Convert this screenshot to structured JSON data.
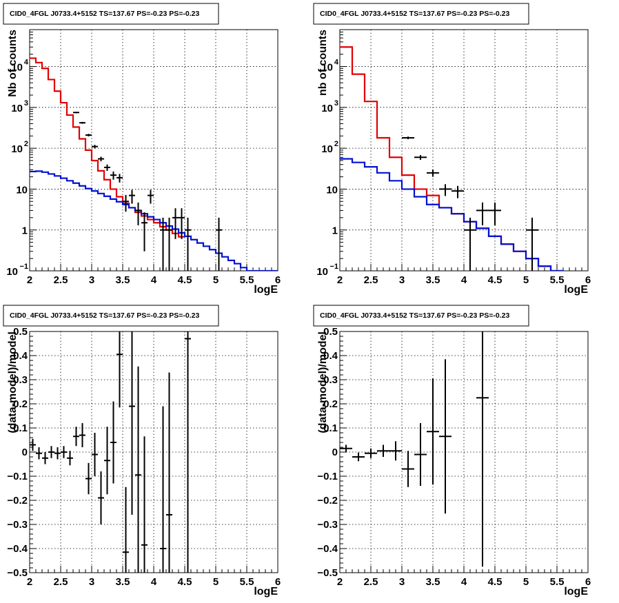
{
  "colors": {
    "data": "#000000",
    "model_total": "#e00000",
    "model_background": "#0010d0",
    "grid": "#000000"
  },
  "chart_data": [
    {
      "type": "line",
      "title": "CID0_4FGL J0733.4+5152 TS=137.67 PS=-0.23 PS=-0.23",
      "xlabel": "logE",
      "ylabel": "Nb of counts",
      "xlim": [
        2,
        6
      ],
      "ylim": [
        0.1,
        80000
      ],
      "y_scale": "log",
      "grid": true,
      "x_ticks": [
        "2",
        "2.5",
        "3",
        "3.5",
        "4",
        "4.5",
        "5",
        "5.5",
        "6"
      ],
      "y_ticks": [
        {
          "value": 0.1,
          "base": "10",
          "exp": "−1"
        },
        {
          "value": 1,
          "base": "1",
          "exp": ""
        },
        {
          "value": 10,
          "base": "10",
          "exp": ""
        },
        {
          "value": 100,
          "base": "10",
          "exp": "2"
        },
        {
          "value": 1000,
          "base": "10",
          "exp": "3"
        },
        {
          "value": 10000,
          "base": "10",
          "exp": "4"
        }
      ],
      "step_width": 0.1,
      "series": [
        {
          "role": "model_total",
          "x_start": 2.0,
          "values": [
            16000,
            12500,
            9000,
            4800,
            2500,
            1300,
            650,
            330,
            170,
            90,
            50,
            28,
            17,
            10,
            6.5,
            4.5,
            3.5,
            2.7,
            2.2,
            1.8,
            1.5,
            1.2,
            1.0,
            0.82,
            0.68
          ]
        },
        {
          "role": "model_background",
          "x_start": 2.0,
          "values": [
            27,
            27.5,
            26,
            23.5,
            21,
            18.5,
            16,
            14,
            12,
            10.3,
            9,
            7.8,
            6.7,
            5.7,
            4.9,
            4.2,
            3.5,
            3.0,
            2.5,
            2.1,
            1.8,
            1.5,
            1.25,
            1.05,
            0.85,
            0.7,
            0.58,
            0.48,
            0.4,
            0.33,
            0.27,
            0.22,
            0.18,
            0.15,
            0.12,
            0.1,
            0.1,
            0.1,
            0.1,
            0.1
          ]
        },
        {
          "role": "data",
          "x_half_width": 0.05,
          "points": [
            {
              "x": 2.75,
              "y": 750,
              "err": 30
            },
            {
              "x": 2.85,
              "y": 420,
              "err": 22
            },
            {
              "x": 2.95,
              "y": 210,
              "err": 15
            },
            {
              "x": 3.05,
              "y": 110,
              "err": 11
            },
            {
              "x": 3.15,
              "y": 55,
              "err": 7
            },
            {
              "x": 3.25,
              "y": 34,
              "err": 6
            },
            {
              "x": 3.35,
              "y": 22,
              "err": 5
            },
            {
              "x": 3.45,
              "y": 19,
              "err": 4.5
            },
            {
              "x": 3.55,
              "y": 5,
              "err": 2.2
            },
            {
              "x": 3.65,
              "y": 7,
              "err": 2.6
            },
            {
              "x": 3.75,
              "y": 3,
              "err": 1.7
            },
            {
              "x": 3.85,
              "y": 1.5,
              "err": 1.2
            },
            {
              "x": 3.95,
              "y": 7,
              "err": 2.6
            },
            {
              "x": 4.15,
              "y": 1,
              "err": 1
            },
            {
              "x": 4.25,
              "y": 1,
              "err": 1
            },
            {
              "x": 4.35,
              "y": 2,
              "err": 1.4
            },
            {
              "x": 4.45,
              "y": 2,
              "err": 1.4
            },
            {
              "x": 4.55,
              "y": 1,
              "err": 1
            },
            {
              "x": 5.05,
              "y": 1,
              "err": 1
            }
          ]
        }
      ]
    },
    {
      "type": "line",
      "title": "CID0_4FGL J0733.4+5152 TS=137.67 PS=-0.23 PS=-0.23",
      "xlabel": "logE",
      "ylabel": "nb of counts",
      "xlim": [
        2,
        6
      ],
      "ylim": [
        0.1,
        80000
      ],
      "y_scale": "log",
      "grid": true,
      "x_ticks": [
        "2",
        "2.5",
        "3",
        "3.5",
        "4",
        "4.5",
        "5",
        "5.5",
        "6"
      ],
      "y_ticks": [
        {
          "value": 0.1,
          "base": "10",
          "exp": "−1"
        },
        {
          "value": 1,
          "base": "1",
          "exp": ""
        },
        {
          "value": 10,
          "base": "10",
          "exp": ""
        },
        {
          "value": 100,
          "base": "10",
          "exp": "2"
        },
        {
          "value": 1000,
          "base": "10",
          "exp": "3"
        },
        {
          "value": 10000,
          "base": "10",
          "exp": "4"
        }
      ],
      "step_width": 0.2,
      "series": [
        {
          "role": "model_total",
          "x_start": 2.0,
          "values": [
            30000,
            6500,
            1400,
            180,
            60,
            22,
            10,
            7,
            3.5,
            2.5,
            1.6,
            1.1,
            0.7,
            0.45,
            0.3,
            0.2,
            0.13,
            0.1
          ]
        },
        {
          "role": "model_background",
          "x_start": 2.0,
          "values": [
            55,
            45,
            35,
            25,
            16,
            10,
            6.5,
            4.2,
            3.5,
            2.5,
            1.6,
            1.1,
            0.7,
            0.45,
            0.3,
            0.2,
            0.13,
            0.1
          ]
        },
        {
          "role": "data",
          "x_half_width": 0.1,
          "points": [
            {
              "x": 3.1,
              "y": 180,
              "err": 13
            },
            {
              "x": 3.3,
              "y": 60,
              "err": 8
            },
            {
              "x": 3.5,
              "y": 25,
              "err": 5
            },
            {
              "x": 3.7,
              "y": 10,
              "err": 3.2
            },
            {
              "x": 3.9,
              "y": 9,
              "err": 3
            },
            {
              "x": 4.1,
              "y": 1,
              "err": 1
            },
            {
              "x": 4.3,
              "y": 3,
              "err": 1.7
            },
            {
              "x": 4.5,
              "y": 3,
              "err": 1.7
            },
            {
              "x": 5.1,
              "y": 1,
              "err": 1
            }
          ]
        }
      ]
    },
    {
      "type": "scatter",
      "title": "CID0_4FGL J0733.4+5152 TS=137.67 PS=-0.23 PS=-0.23",
      "xlabel": "logE",
      "ylabel": "(data-model)/model",
      "xlim": [
        2,
        6
      ],
      "ylim": [
        -0.5,
        0.5
      ],
      "y_scale": "linear",
      "grid": true,
      "x_ticks": [
        "2",
        "2.5",
        "3",
        "3.5",
        "4",
        "4.5",
        "5",
        "5.5",
        "6"
      ],
      "y_ticks": [
        "−0.5",
        "−0.4",
        "−0.3",
        "−0.2",
        "−0.1",
        "0",
        "0.1",
        "0.2",
        "0.3",
        "0.4",
        "0.5"
      ],
      "series": [
        {
          "role": "data",
          "x_half_width": 0.05,
          "points": [
            {
              "x": 2.05,
              "y": 0.03,
              "err": 0.025
            },
            {
              "x": 2.15,
              "y": -0.005,
              "err": 0.025
            },
            {
              "x": 2.25,
              "y": -0.025,
              "err": 0.025
            },
            {
              "x": 2.35,
              "y": 0.0,
              "err": 0.025
            },
            {
              "x": 2.45,
              "y": -0.005,
              "err": 0.025
            },
            {
              "x": 2.55,
              "y": 0.0,
              "err": 0.025
            },
            {
              "x": 2.65,
              "y": -0.025,
              "err": 0.03
            },
            {
              "x": 2.75,
              "y": 0.065,
              "err": 0.04
            },
            {
              "x": 2.85,
              "y": 0.07,
              "err": 0.05
            },
            {
              "x": 2.95,
              "y": -0.11,
              "err": 0.065
            },
            {
              "x": 3.05,
              "y": -0.01,
              "err": 0.09
            },
            {
              "x": 3.15,
              "y": -0.19,
              "err": 0.11
            },
            {
              "x": 3.25,
              "y": -0.035,
              "err": 0.14
            },
            {
              "x": 3.35,
              "y": 0.04,
              "err": 0.17
            },
            {
              "x": 3.45,
              "y": 0.405,
              "err": 0.22
            },
            {
              "x": 3.55,
              "y": -0.415,
              "err": 0.27
            },
            {
              "x": 3.65,
              "y": 0.19,
              "err": 0.45
            },
            {
              "x": 3.75,
              "y": -0.095,
              "err": 0.45
            },
            {
              "x": 3.85,
              "y": -0.385,
              "err": 0.45
            },
            {
              "x": 4.15,
              "y": -0.4,
              "err": 0.59
            },
            {
              "x": 4.25,
              "y": -0.26,
              "err": 0.59
            },
            {
              "x": 4.55,
              "y": 0.47,
              "err": 1.0
            }
          ]
        }
      ]
    },
    {
      "type": "scatter",
      "title": "CID0_4FGL J0733.4+5152 TS=137.67 PS=-0.23 PS=-0.23",
      "xlabel": "logE",
      "ylabel": "(data-model)/model",
      "xlim": [
        2,
        6
      ],
      "ylim": [
        -0.5,
        0.5
      ],
      "y_scale": "linear",
      "grid": true,
      "x_ticks": [
        "2",
        "2.5",
        "3",
        "3.5",
        "4",
        "4.5",
        "5",
        "5.5",
        "6"
      ],
      "y_ticks": [
        "−0.5",
        "−0.4",
        "−0.3",
        "−0.2",
        "−0.1",
        "0",
        "0.1",
        "0.2",
        "0.3",
        "0.4",
        "0.5"
      ],
      "series": [
        {
          "role": "data",
          "x_half_width": 0.1,
          "points": [
            {
              "x": 2.1,
              "y": 0.015,
              "err": 0.015
            },
            {
              "x": 2.3,
              "y": -0.02,
              "err": 0.018
            },
            {
              "x": 2.5,
              "y": -0.005,
              "err": 0.02
            },
            {
              "x": 2.7,
              "y": 0.005,
              "err": 0.025
            },
            {
              "x": 2.9,
              "y": 0.005,
              "err": 0.04
            },
            {
              "x": 3.1,
              "y": -0.07,
              "err": 0.075
            },
            {
              "x": 3.3,
              "y": -0.01,
              "err": 0.13
            },
            {
              "x": 3.5,
              "y": 0.085,
              "err": 0.22
            },
            {
              "x": 3.7,
              "y": 0.065,
              "err": 0.32
            },
            {
              "x": 4.3,
              "y": 0.225,
              "err": 0.7
            }
          ]
        }
      ]
    }
  ]
}
